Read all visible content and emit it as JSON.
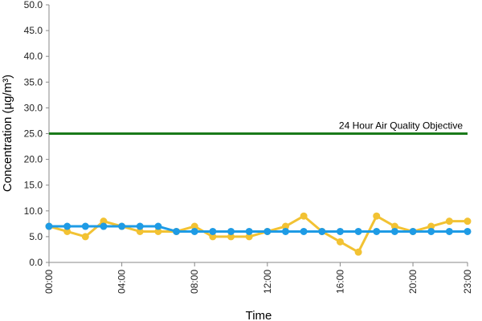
{
  "chart_data": {
    "type": "line",
    "xlabel": "Time",
    "ylabel": "Concentration (µg/m³)",
    "ylim": [
      0,
      50
    ],
    "yticks": [
      "0.0",
      "5.0",
      "10.0",
      "15.0",
      "20.0",
      "25.0",
      "30.0",
      "35.0",
      "40.0",
      "45.0",
      "50.0"
    ],
    "xticks": [
      "00:00",
      "04:00",
      "08:00",
      "12:00",
      "16:00",
      "20:00",
      "23:00"
    ],
    "x": [
      "00:00",
      "01:00",
      "02:00",
      "03:00",
      "04:00",
      "05:00",
      "06:00",
      "07:00",
      "08:00",
      "09:00",
      "10:00",
      "11:00",
      "12:00",
      "13:00",
      "14:00",
      "15:00",
      "16:00",
      "17:00",
      "18:00",
      "19:00",
      "20:00",
      "21:00",
      "22:00",
      "23:00"
    ],
    "series": [
      {
        "color": "#f2c233",
        "values": [
          7,
          6,
          5,
          8,
          7,
          6,
          6,
          6,
          7,
          5,
          5,
          5,
          6,
          7,
          9,
          6,
          4,
          2,
          9,
          7,
          6,
          7,
          8,
          8
        ]
      },
      {
        "color": "#1e9be5",
        "values": [
          7,
          7,
          7,
          7,
          7,
          7,
          7,
          6,
          6,
          6,
          6,
          6,
          6,
          6,
          6,
          6,
          6,
          6,
          6,
          6,
          6,
          6,
          6,
          6
        ]
      }
    ],
    "reference_line": {
      "label": "24 Hour Air Quality Objective",
      "value": 25,
      "color": "#1a7a1a"
    },
    "grid": false,
    "legend": "none"
  }
}
